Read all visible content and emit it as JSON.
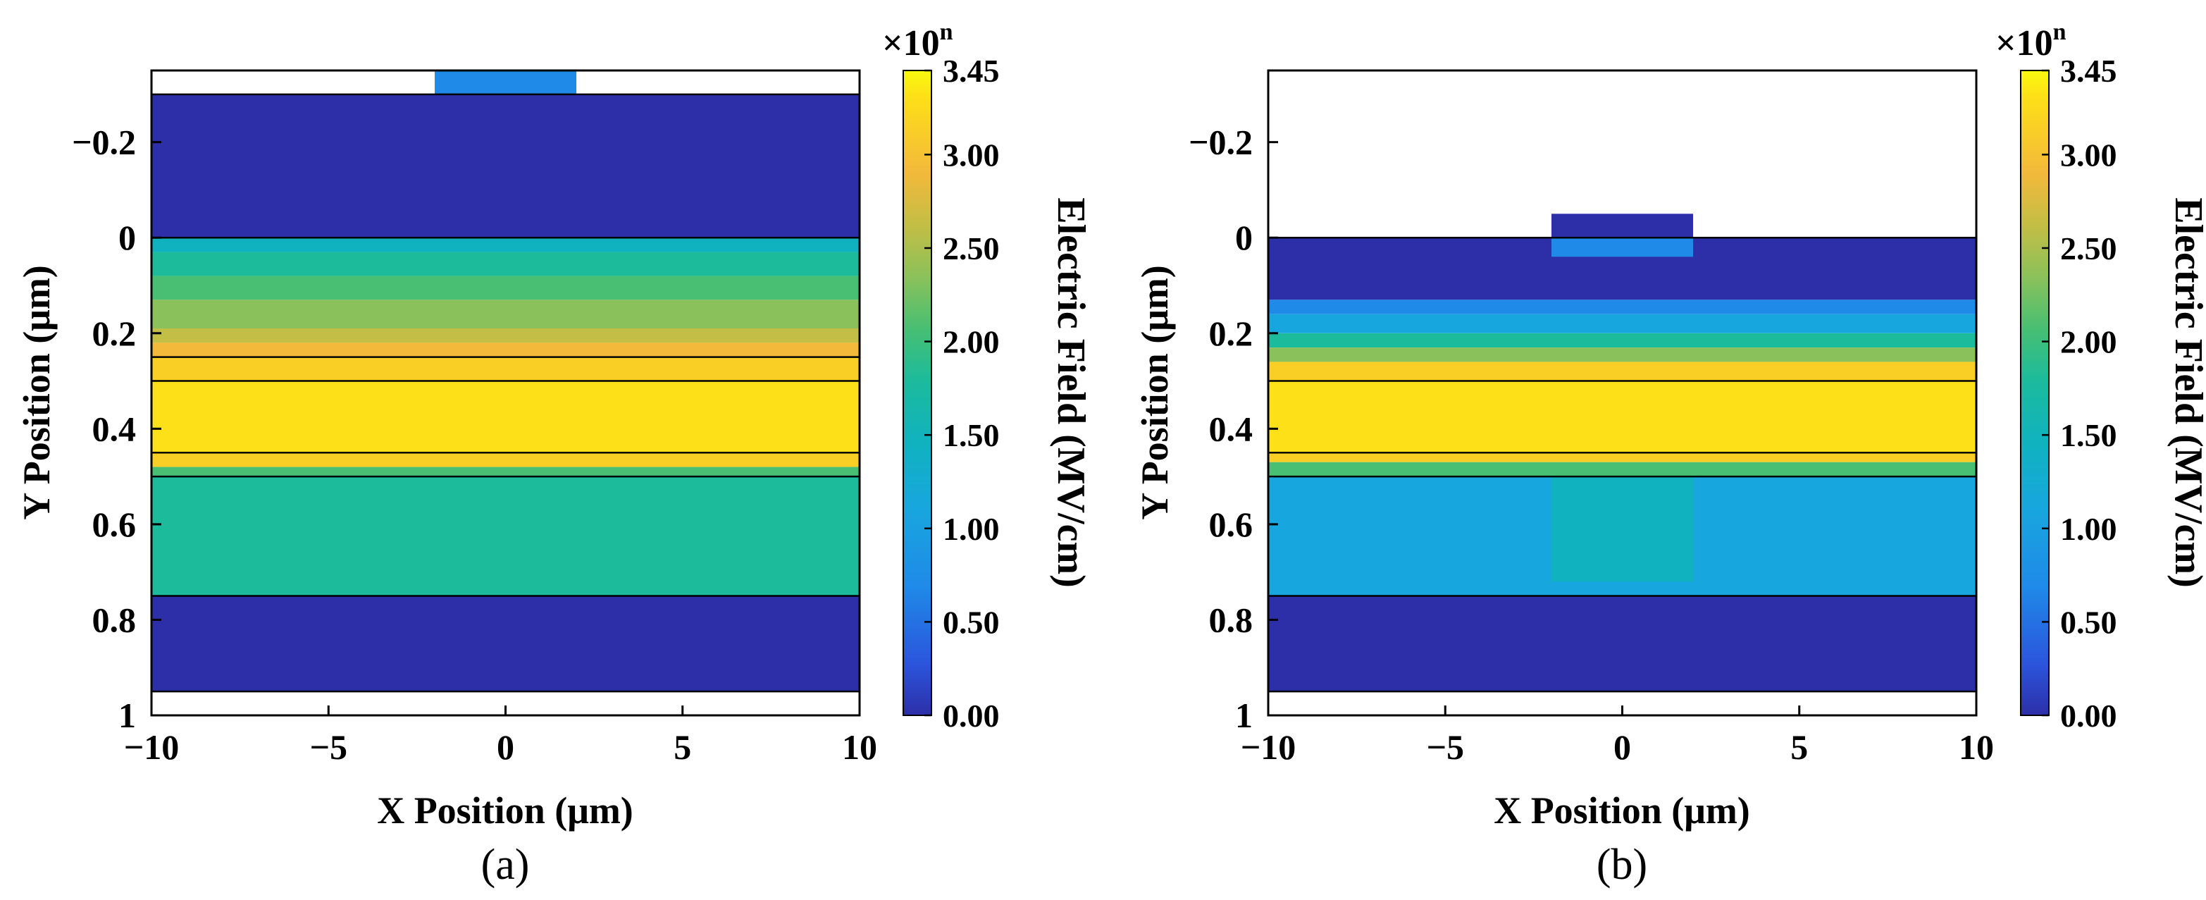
{
  "colors": {
    "c0": "#2d2fa8",
    "c1": "#2b55dc",
    "c2": "#1f8ae8",
    "c3": "#18a6de",
    "c4": "#10b2c0",
    "c5": "#1cbb9c",
    "c6": "#48bf72",
    "c7": "#8bc15a",
    "c8": "#c3be45",
    "c9": "#f2b93b",
    "c10": "#f9cf26",
    "c11": "#fde017",
    "c12": "#f9fa0f",
    "frame": "#000000",
    "background": "#ffffff"
  },
  "chart_data": [
    {
      "type": "heatmap",
      "caption": "(a)",
      "xlabel": "X Position (μm)",
      "ylabel": "Y Position (μm)",
      "xlim": [
        -10,
        10
      ],
      "ylim": [
        -0.35,
        1
      ],
      "y_inverted": true,
      "xticks": [
        -10,
        -5,
        0,
        5,
        10
      ],
      "xtick_labels": [
        "−10",
        "−5",
        "0",
        "5",
        "10"
      ],
      "yticks": [
        -0.2,
        0,
        0.2,
        0.4,
        0.6,
        0.8,
        1
      ],
      "ytick_labels": [
        "−0.2",
        "0",
        "0.2",
        "0.4",
        "0.6",
        "0.8",
        "1"
      ],
      "regions": [
        {
          "x": [
            -10,
            10
          ],
          "y": [
            -0.3,
            0.0
          ],
          "field": 0.05
        },
        {
          "x": [
            -10,
            10
          ],
          "y": [
            0.0,
            0.03
          ],
          "field": 1.25
        },
        {
          "x": [
            -10,
            10
          ],
          "y": [
            0.03,
            0.08
          ],
          "field": 1.5
        },
        {
          "x": [
            -10,
            10
          ],
          "y": [
            0.08,
            0.13
          ],
          "field": 1.75
        },
        {
          "x": [
            -10,
            10
          ],
          "y": [
            0.13,
            0.19
          ],
          "field": 2.0
        },
        {
          "x": [
            -10,
            10
          ],
          "y": [
            0.19,
            0.22
          ],
          "field": 2.25
        },
        {
          "x": [
            -10,
            10
          ],
          "y": [
            0.22,
            0.25
          ],
          "field": 2.5
        },
        {
          "x": [
            -10,
            10
          ],
          "y": [
            0.25,
            0.3
          ],
          "field": 2.9
        },
        {
          "x": [
            -10,
            10
          ],
          "y": [
            0.3,
            0.45
          ],
          "field": 3.3
        },
        {
          "x": [
            -10,
            10
          ],
          "y": [
            0.45,
            0.48
          ],
          "field": 2.9
        },
        {
          "x": [
            -10,
            10
          ],
          "y": [
            0.48,
            0.5
          ],
          "field": 1.75
        },
        {
          "x": [
            -10,
            10
          ],
          "y": [
            0.5,
            0.75
          ],
          "field": 1.3
        },
        {
          "x": [
            -10,
            10
          ],
          "y": [
            0.75,
            0.95
          ],
          "field": 0.05
        },
        {
          "x": [
            -2,
            2
          ],
          "y": [
            -0.35,
            -0.3
          ],
          "field": 0.5
        }
      ],
      "layer_boundaries": [
        -0.3,
        0,
        0.25,
        0.3,
        0.45,
        0.5,
        0.75,
        0.95
      ]
    },
    {
      "type": "heatmap",
      "caption": "(b)",
      "xlabel": "X Position (μm)",
      "ylabel": "Y Position (μm)",
      "xlim": [
        -10,
        10
      ],
      "ylim": [
        -0.35,
        1
      ],
      "y_inverted": true,
      "xticks": [
        -10,
        -5,
        0,
        5,
        10
      ],
      "xtick_labels": [
        "−10",
        "−5",
        "0",
        "5",
        "10"
      ],
      "yticks": [
        -0.2,
        0,
        0.2,
        0.4,
        0.6,
        0.8,
        1
      ],
      "ytick_labels": [
        "−0.2",
        "0",
        "0.2",
        "0.4",
        "0.6",
        "0.8",
        "1"
      ],
      "regions": [
        {
          "x": [
            -10,
            10
          ],
          "y": [
            0.0,
            0.13
          ],
          "field": 0.05
        },
        {
          "x": [
            -10,
            10
          ],
          "y": [
            0.13,
            0.16
          ],
          "field": 0.5
        },
        {
          "x": [
            -10,
            10
          ],
          "y": [
            0.16,
            0.2
          ],
          "field": 1.0
        },
        {
          "x": [
            -10,
            10
          ],
          "y": [
            0.2,
            0.23
          ],
          "field": 1.5
        },
        {
          "x": [
            -10,
            10
          ],
          "y": [
            0.23,
            0.26
          ],
          "field": 2.0
        },
        {
          "x": [
            -10,
            10
          ],
          "y": [
            0.26,
            0.3
          ],
          "field": 2.9
        },
        {
          "x": [
            -10,
            10
          ],
          "y": [
            0.3,
            0.45
          ],
          "field": 3.2
        },
        {
          "x": [
            -10,
            10
          ],
          "y": [
            0.45,
            0.47
          ],
          "field": 2.9
        },
        {
          "x": [
            -10,
            10
          ],
          "y": [
            0.47,
            0.5
          ],
          "field": 1.75
        },
        {
          "x": [
            -10,
            10
          ],
          "y": [
            0.5,
            0.75
          ],
          "field": 1.0
        },
        {
          "x": [
            -2,
            2
          ],
          "y": [
            0.5,
            0.72
          ],
          "field": 1.25
        },
        {
          "x": [
            -10,
            10
          ],
          "y": [
            0.75,
            0.95
          ],
          "field": 0.05
        },
        {
          "x": [
            -2,
            2
          ],
          "y": [
            -0.05,
            0.0
          ],
          "field": 0.05
        },
        {
          "x": [
            -2,
            2
          ],
          "y": [
            0.0,
            0.04
          ],
          "field": 0.5
        }
      ],
      "layer_boundaries": [
        0,
        0.3,
        0.45,
        0.5,
        0.75,
        0.95
      ]
    }
  ],
  "colorbar": {
    "label": "Electric Field (MV/cm)",
    "multiplier": "×10",
    "exponent": "n",
    "min": 0,
    "max": 3.45,
    "ticks": [
      0,
      0.5,
      1.0,
      1.5,
      2.0,
      2.5,
      3.0,
      3.45
    ],
    "tick_labels": [
      "0.00",
      "0.50",
      "1.00",
      "1.50",
      "2.00",
      "2.50",
      "3.00",
      "3.45"
    ]
  }
}
